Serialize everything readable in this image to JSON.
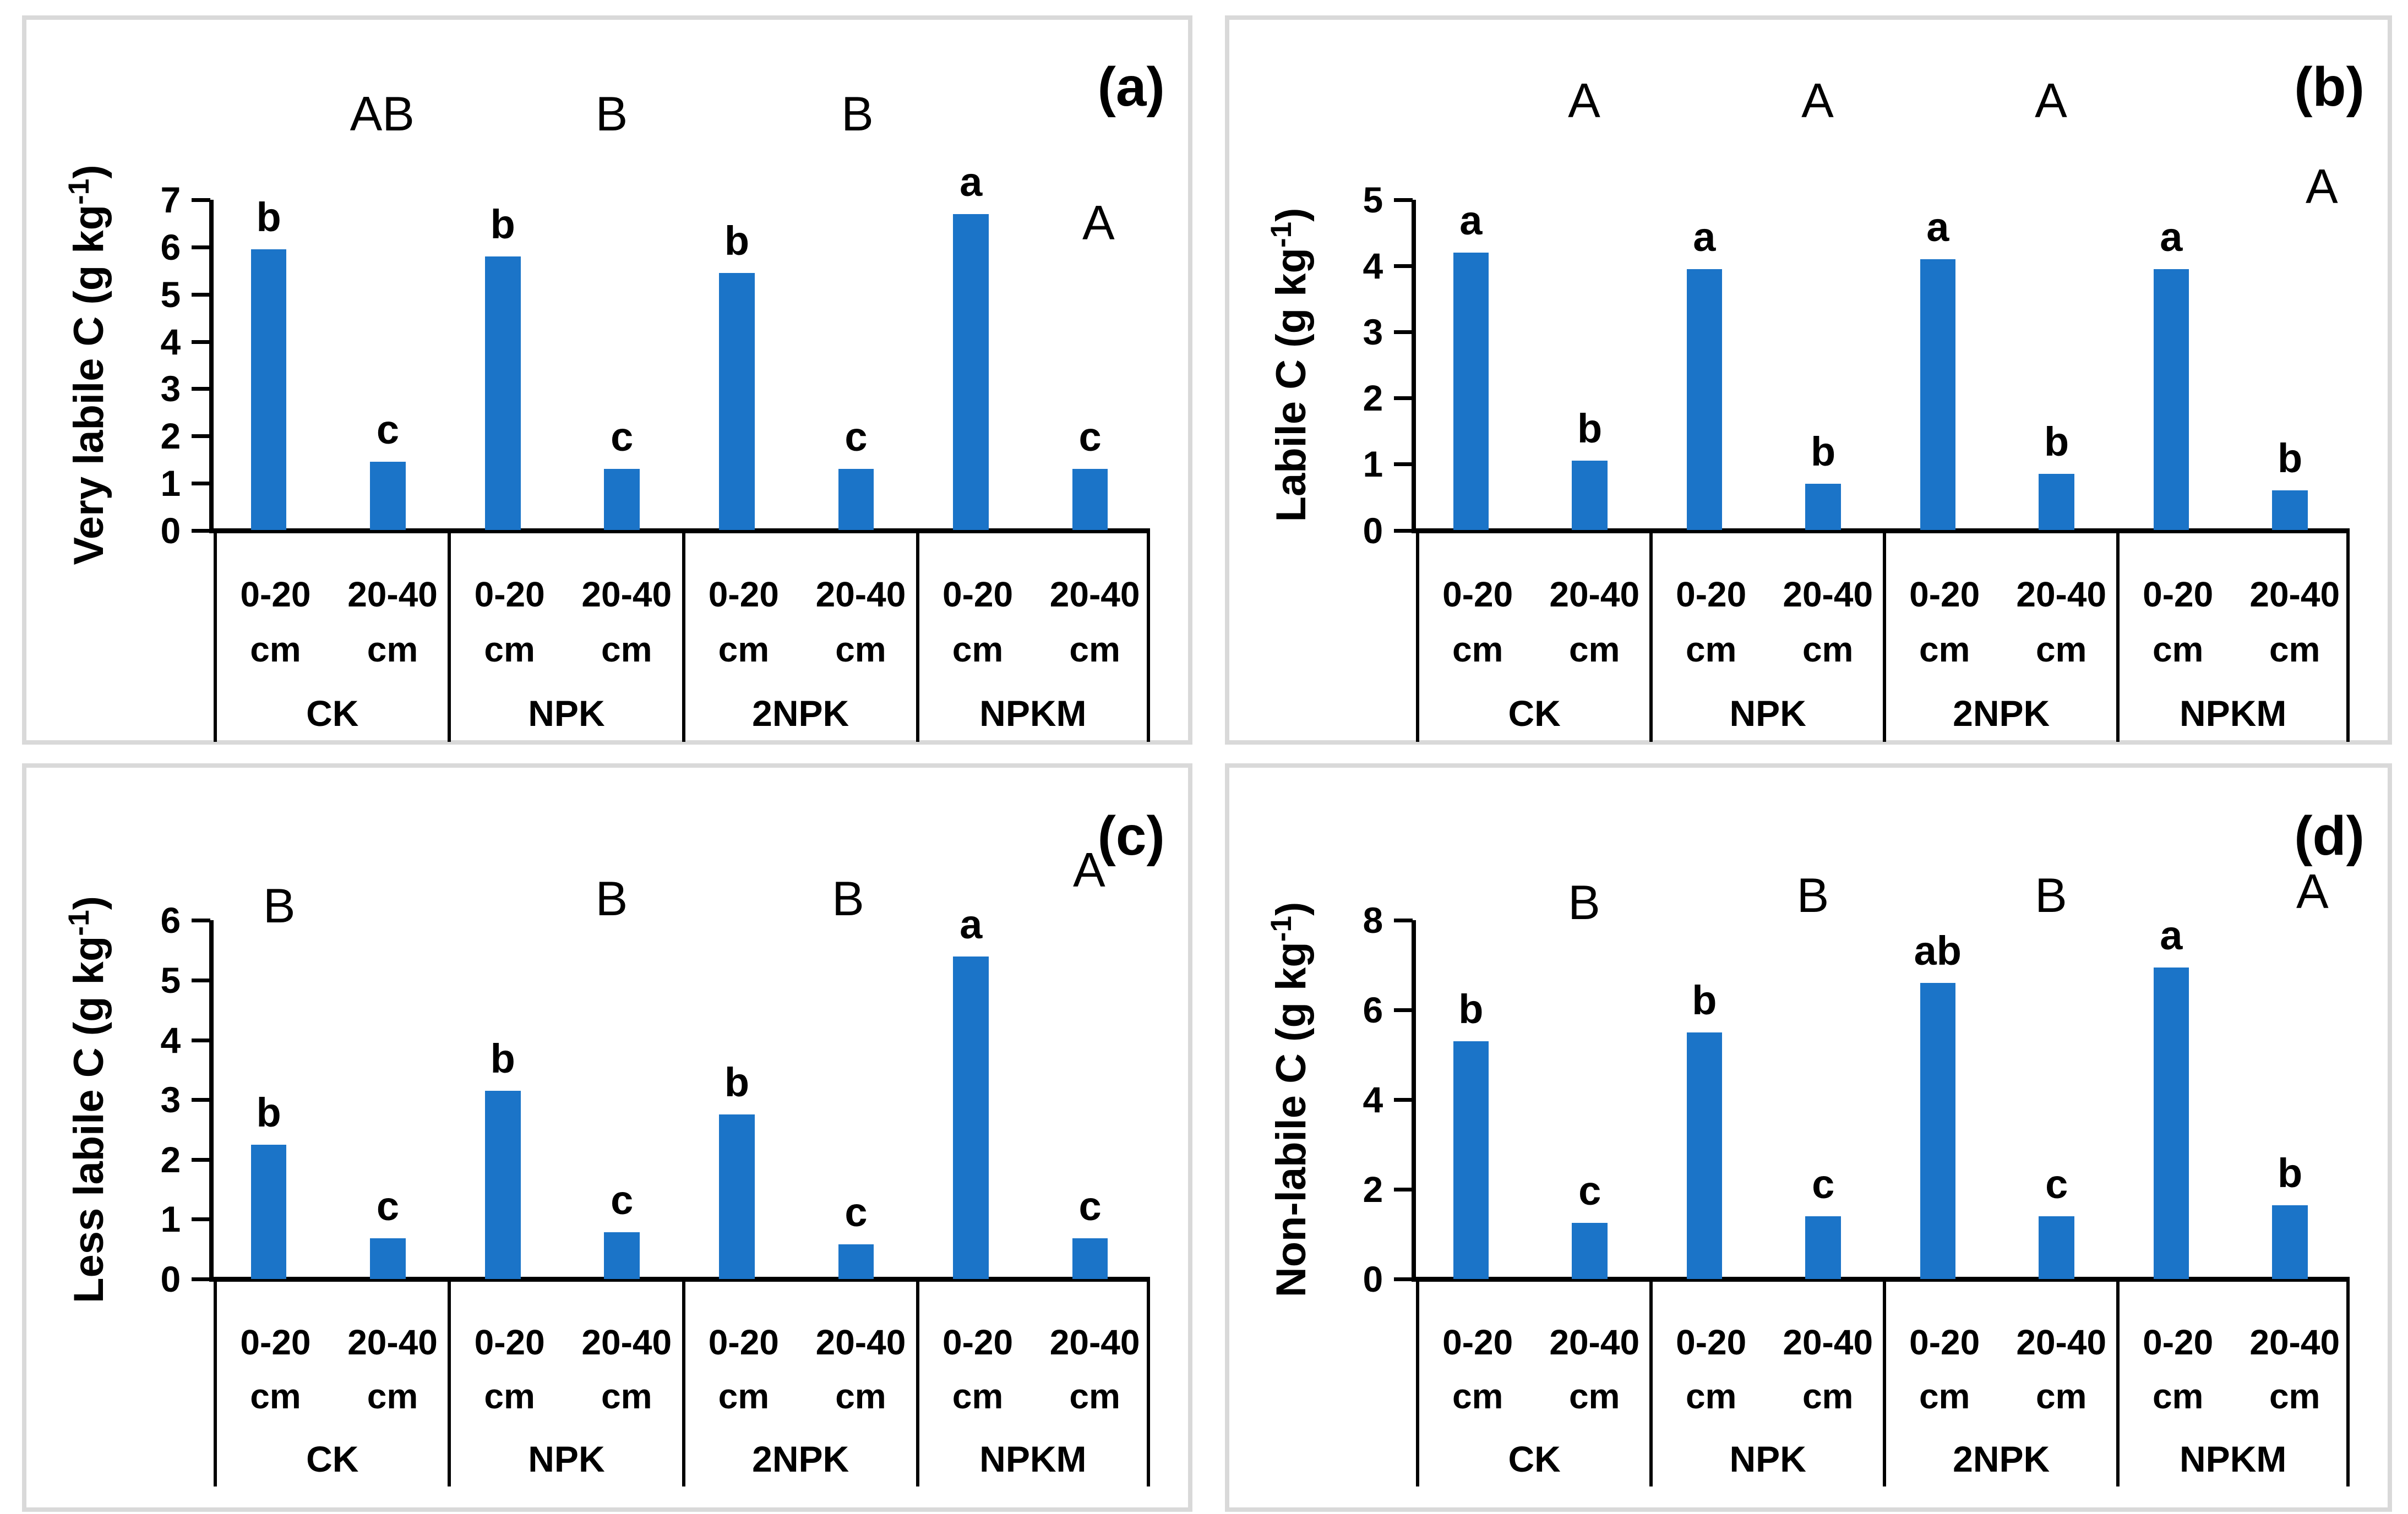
{
  "colors": {
    "bar": "#1b74c8",
    "axis": "#000000",
    "panel_border": "#d9d9d9",
    "background": "#ffffff"
  },
  "categories": [
    "0-20 cm",
    "20-40 cm"
  ],
  "depth_label_line1": [
    "0-20",
    "20-40"
  ],
  "depth_label_line2": "cm",
  "treatments": [
    "CK",
    "NPK",
    "2NPK",
    "NPKM"
  ],
  "chart_data": [
    {
      "type": "bar",
      "panel_tag": "(a)",
      "ylabel": "Very labile C (g kg-1)",
      "ylabel_prefix": "Very labile C (g kg",
      "ylabel_sup": "-1",
      "ylabel_suffix": ")",
      "ylim": [
        0,
        7
      ],
      "yticks": [
        0,
        1,
        2,
        3,
        4,
        5,
        6,
        7
      ],
      "categories": [
        "0-20 cm",
        "20-40 cm"
      ],
      "groups": [
        {
          "name": "CK",
          "group_letter": "AB",
          "gl_x": 72,
          "gl_y": -26,
          "values": [
            5.95,
            1.45
          ],
          "bar_letters": [
            "b",
            "c"
          ]
        },
        {
          "name": "NPK",
          "group_letter": "B",
          "gl_x": 70,
          "gl_y": -26,
          "values": [
            5.8,
            1.3
          ],
          "bar_letters": [
            "b",
            "c"
          ]
        },
        {
          "name": "2NPK",
          "group_letter": "B",
          "gl_x": 75,
          "gl_y": -26,
          "values": [
            5.45,
            1.3
          ],
          "bar_letters": [
            "b",
            "c"
          ]
        },
        {
          "name": "NPKM",
          "group_letter": "A",
          "gl_x": 78,
          "gl_y": 7,
          "values": [
            6.7,
            1.3
          ],
          "bar_letters": [
            "a",
            "c"
          ]
        }
      ]
    },
    {
      "type": "bar",
      "panel_tag": "(b)",
      "ylabel": "Labile C (g kg-1)",
      "ylabel_prefix": "Labile C (g kg",
      "ylabel_sup": "-1",
      "ylabel_suffix": ")",
      "ylim": [
        0,
        5
      ],
      "yticks": [
        0,
        1,
        2,
        3,
        4,
        5
      ],
      "categories": [
        "0-20 cm",
        "20-40 cm"
      ],
      "groups": [
        {
          "name": "CK",
          "group_letter": "A",
          "gl_x": 72,
          "gl_y": -30,
          "values": [
            4.2,
            1.05
          ],
          "bar_letters": [
            "a",
            "b"
          ]
        },
        {
          "name": "NPK",
          "group_letter": "A",
          "gl_x": 72,
          "gl_y": -30,
          "values": [
            3.95,
            0.7
          ],
          "bar_letters": [
            "a",
            "b"
          ]
        },
        {
          "name": "2NPK",
          "group_letter": "A",
          "gl_x": 72,
          "gl_y": -30,
          "values": [
            4.1,
            0.85
          ],
          "bar_letters": [
            "a",
            "b"
          ]
        },
        {
          "name": "NPKM",
          "group_letter": "A",
          "gl_x": 88,
          "gl_y": -4,
          "values": [
            3.95,
            0.6
          ],
          "bar_letters": [
            "a",
            "b"
          ]
        }
      ]
    },
    {
      "type": "bar",
      "panel_tag": "(c)",
      "ylabel": "Less labile C (g kg-1)",
      "ylabel_prefix": "Less labile C (g kg",
      "ylabel_sup": "-1",
      "ylabel_suffix": ")",
      "ylim": [
        0,
        6
      ],
      "yticks": [
        0,
        1,
        2,
        3,
        4,
        5,
        6
      ],
      "categories": [
        "0-20 cm",
        "20-40 cm"
      ],
      "groups": [
        {
          "name": "CK",
          "group_letter": "B",
          "gl_x": 28,
          "gl_y": -4,
          "values": [
            2.25,
            0.68
          ],
          "bar_letters": [
            "b",
            "c"
          ]
        },
        {
          "name": "NPK",
          "group_letter": "B",
          "gl_x": 70,
          "gl_y": -6,
          "values": [
            3.15,
            0.78
          ],
          "bar_letters": [
            "b",
            "c"
          ]
        },
        {
          "name": "2NPK",
          "group_letter": "B",
          "gl_x": 71,
          "gl_y": -6,
          "values": [
            2.75,
            0.58
          ],
          "bar_letters": [
            "b",
            "c"
          ]
        },
        {
          "name": "NPKM",
          "group_letter": "A",
          "gl_x": 74,
          "gl_y": -14,
          "values": [
            5.4,
            0.68
          ],
          "bar_letters": [
            "a",
            "c"
          ]
        }
      ]
    },
    {
      "type": "bar",
      "panel_tag": "(d)",
      "ylabel": "Non-labile C (g kg-1)",
      "ylabel_prefix": "Non-labile C (g kg",
      "ylabel_sup": "-1",
      "ylabel_suffix": ")",
      "ylim": [
        0,
        8
      ],
      "yticks": [
        0,
        2,
        4,
        6,
        8
      ],
      "categories": [
        "0-20 cm",
        "20-40 cm"
      ],
      "groups": [
        {
          "name": "CK",
          "group_letter": "B",
          "gl_x": 72,
          "gl_y": -5,
          "values": [
            5.3,
            1.25
          ],
          "bar_letters": [
            "b",
            "c"
          ]
        },
        {
          "name": "NPK",
          "group_letter": "B",
          "gl_x": 70,
          "gl_y": -7,
          "values": [
            5.5,
            1.4
          ],
          "bar_letters": [
            "b",
            "c"
          ]
        },
        {
          "name": "2NPK",
          "group_letter": "B",
          "gl_x": 72,
          "gl_y": -7,
          "values": [
            6.6,
            1.4
          ],
          "bar_letters": [
            "ab",
            "c"
          ]
        },
        {
          "name": "NPKM",
          "group_letter": "A",
          "gl_x": 84,
          "gl_y": -8,
          "values": [
            6.95,
            1.65
          ],
          "bar_letters": [
            "a",
            "b"
          ]
        }
      ]
    }
  ]
}
